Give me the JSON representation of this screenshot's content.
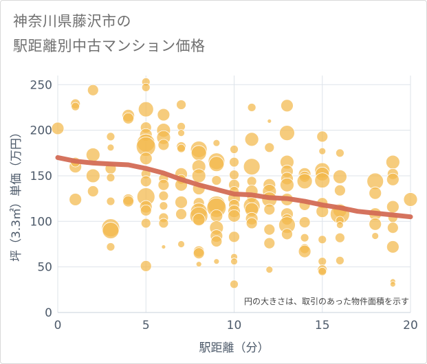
{
  "header": {
    "title_line1": "神奈川県藤沢市の",
    "title_line2": "駅距離別中古マンション価格"
  },
  "chart_data": {
    "type": "scatter",
    "title": "神奈川県藤沢市の駅距離別中古マンション価格",
    "xlabel": "駅距離（分）",
    "ylabel": "坪（3.3㎡）単価（万円）",
    "xlim": [
      0,
      20
    ],
    "ylim": [
      0,
      260
    ],
    "x_ticks": [
      0,
      5,
      10,
      15,
      20
    ],
    "y_ticks": [
      0,
      50,
      100,
      150,
      200,
      250
    ],
    "grid": true,
    "note": "円の大きさは、取引のあった物件面積を示す",
    "colors": {
      "bubble": "#f2b84b",
      "trend": "#d36b55",
      "grid": "#dde3ea",
      "axis": "#4d5a6a"
    },
    "points": [
      [
        0,
        202,
        9
      ],
      [
        1,
        229,
        7
      ],
      [
        1,
        226,
        6
      ],
      [
        1,
        160,
        9
      ],
      [
        1,
        165,
        7
      ],
      [
        1,
        124,
        9
      ],
      [
        2,
        244,
        8
      ],
      [
        2,
        173,
        10
      ],
      [
        2,
        150,
        10
      ],
      [
        2,
        133,
        8
      ],
      [
        3,
        193,
        6
      ],
      [
        3,
        181,
        5
      ],
      [
        3,
        158,
        8
      ],
      [
        3,
        148,
        6
      ],
      [
        3,
        122,
        6
      ],
      [
        3,
        93,
        13
      ],
      [
        3,
        90,
        12
      ],
      [
        3,
        72,
        6
      ],
      [
        4,
        216,
        9
      ],
      [
        4,
        213,
        8
      ],
      [
        4,
        124,
        8
      ],
      [
        4,
        122,
        8
      ],
      [
        5,
        253,
        6
      ],
      [
        5,
        247,
        6
      ],
      [
        5,
        223,
        11
      ],
      [
        5,
        203,
        8
      ],
      [
        5,
        195,
        9
      ],
      [
        5,
        186,
        13
      ],
      [
        5,
        182,
        14
      ],
      [
        5,
        169,
        9
      ],
      [
        5,
        152,
        7
      ],
      [
        5,
        144,
        8
      ],
      [
        5,
        127,
        13
      ],
      [
        5,
        116,
        9
      ],
      [
        5,
        112,
        8
      ],
      [
        5,
        98,
        7
      ],
      [
        5,
        51,
        8
      ],
      [
        6,
        217,
        9
      ],
      [
        6,
        200,
        10
      ],
      [
        6,
        192,
        10
      ],
      [
        6,
        184,
        8
      ],
      [
        6,
        147,
        7
      ],
      [
        6,
        140,
        8
      ],
      [
        6,
        128,
        7
      ],
      [
        6,
        117,
        6
      ],
      [
        6,
        104,
        7
      ],
      [
        6,
        98,
        7
      ],
      [
        6,
        72,
        3
      ],
      [
        7,
        228,
        7
      ],
      [
        7,
        204,
        6
      ],
      [
        7,
        197,
        5
      ],
      [
        7,
        182,
        7
      ],
      [
        7,
        180,
        6
      ],
      [
        7,
        152,
        9
      ],
      [
        7,
        146,
        7
      ],
      [
        7,
        140,
        9
      ],
      [
        7,
        121,
        9
      ],
      [
        7,
        108,
        8
      ],
      [
        7,
        75,
        5
      ],
      [
        8,
        179,
        12
      ],
      [
        8,
        175,
        11
      ],
      [
        8,
        160,
        10
      ],
      [
        8,
        150,
        10
      ],
      [
        8,
        136,
        9
      ],
      [
        8,
        120,
        8
      ],
      [
        8,
        111,
        12
      ],
      [
        8,
        106,
        13
      ],
      [
        8,
        102,
        9
      ],
      [
        8,
        67,
        8
      ],
      [
        8,
        65,
        8
      ],
      [
        8,
        53,
        4
      ],
      [
        9,
        186,
        5
      ],
      [
        9,
        166,
        12
      ],
      [
        9,
        163,
        11
      ],
      [
        9,
        145,
        7
      ],
      [
        9,
        118,
        13
      ],
      [
        9,
        115,
        14
      ],
      [
        9,
        106,
        9
      ],
      [
        9,
        93,
        10
      ],
      [
        9,
        84,
        9
      ],
      [
        9,
        78,
        8
      ],
      [
        9,
        56,
        4
      ],
      [
        10,
        179,
        6
      ],
      [
        10,
        165,
        7
      ],
      [
        10,
        151,
        7
      ],
      [
        10,
        140,
        8
      ],
      [
        10,
        133,
        7
      ],
      [
        10,
        125,
        9
      ],
      [
        10,
        118,
        8
      ],
      [
        10,
        111,
        9
      ],
      [
        10,
        106,
        9
      ],
      [
        10,
        83,
        8
      ],
      [
        10,
        61,
        5
      ],
      [
        10,
        56,
        5
      ],
      [
        10,
        31,
        6
      ],
      [
        11,
        225,
        6
      ],
      [
        11,
        190,
        10
      ],
      [
        11,
        160,
        12
      ],
      [
        11,
        144,
        7
      ],
      [
        11,
        133,
        9
      ],
      [
        11,
        126,
        7
      ],
      [
        11,
        117,
        12
      ],
      [
        11,
        113,
        10
      ],
      [
        11,
        103,
        9
      ],
      [
        11,
        98,
        8
      ],
      [
        12,
        210,
        3
      ],
      [
        12,
        181,
        7
      ],
      [
        12,
        140,
        9
      ],
      [
        12,
        133,
        10
      ],
      [
        12,
        124,
        11
      ],
      [
        12,
        113,
        8
      ],
      [
        12,
        91,
        8
      ],
      [
        12,
        76,
        8
      ],
      [
        12,
        47,
        5
      ],
      [
        13,
        227,
        9
      ],
      [
        13,
        197,
        11
      ],
      [
        13,
        165,
        10
      ],
      [
        13,
        155,
        9
      ],
      [
        13,
        147,
        9
      ],
      [
        13,
        140,
        10
      ],
      [
        13,
        124,
        9
      ],
      [
        13,
        108,
        9
      ],
      [
        13,
        102,
        8
      ],
      [
        13,
        96,
        12
      ],
      [
        13,
        86,
        8
      ],
      [
        14,
        152,
        9
      ],
      [
        14,
        149,
        8
      ],
      [
        14,
        144,
        11
      ],
      [
        14,
        118,
        8
      ],
      [
        14,
        99,
        8
      ],
      [
        14,
        82,
        6
      ],
      [
        14,
        70,
        7
      ],
      [
        14,
        67,
        9
      ],
      [
        15,
        193,
        8
      ],
      [
        15,
        177,
        5
      ],
      [
        15,
        156,
        11
      ],
      [
        15,
        152,
        10
      ],
      [
        15,
        145,
        11
      ],
      [
        15,
        120,
        8
      ],
      [
        15,
        111,
        9
      ],
      [
        15,
        80,
        6
      ],
      [
        15,
        56,
        6
      ],
      [
        15,
        47,
        7
      ],
      [
        15,
        45,
        6
      ],
      [
        16,
        175,
        6
      ],
      [
        16,
        149,
        10
      ],
      [
        16,
        134,
        8
      ],
      [
        16,
        112,
        10
      ],
      [
        16,
        108,
        14
      ],
      [
        16,
        101,
        6
      ],
      [
        16,
        96,
        5
      ],
      [
        16,
        82,
        7
      ],
      [
        16,
        57,
        6
      ],
      [
        18,
        144,
        12
      ],
      [
        18,
        131,
        9
      ],
      [
        18,
        108,
        9
      ],
      [
        18,
        97,
        9
      ],
      [
        18,
        84,
        5
      ],
      [
        19,
        165,
        10
      ],
      [
        19,
        152,
        8
      ],
      [
        19,
        146,
        9
      ],
      [
        19,
        116,
        9
      ],
      [
        19,
        104,
        7
      ],
      [
        19,
        93,
        8
      ],
      [
        19,
        72,
        9
      ],
      [
        19,
        34,
        4
      ],
      [
        19,
        31,
        4
      ],
      [
        20,
        124,
        10
      ]
    ],
    "trend": [
      [
        0,
        170
      ],
      [
        1,
        166
      ],
      [
        2,
        164
      ],
      [
        3,
        163
      ],
      [
        4,
        162
      ],
      [
        5,
        158
      ],
      [
        6,
        153
      ],
      [
        7,
        146
      ],
      [
        8,
        140
      ],
      [
        9,
        135
      ],
      [
        10,
        130
      ],
      [
        11,
        129
      ],
      [
        12,
        126
      ],
      [
        13,
        125
      ],
      [
        14,
        122
      ],
      [
        15,
        118
      ],
      [
        16,
        115
      ],
      [
        17,
        111
      ],
      [
        18,
        109
      ],
      [
        19,
        107
      ],
      [
        20,
        105
      ]
    ]
  }
}
